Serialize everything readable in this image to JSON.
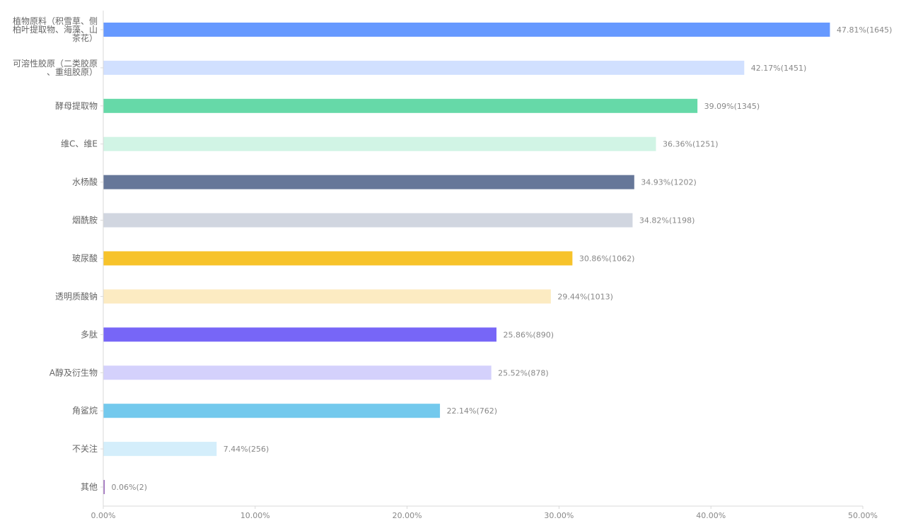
{
  "chart_data": {
    "type": "bar",
    "orientation": "horizontal",
    "title": "",
    "xlabel": "",
    "ylabel": "",
    "xlim": [
      0,
      50
    ],
    "x_ticks": [
      "0.00%",
      "10.00%",
      "20.00%",
      "30.00%",
      "40.00%",
      "50.00%"
    ],
    "grid": false,
    "categories": [
      "植物原料（积雪草、侧柏叶提取物、海藻、山茶花）",
      "可溶性胶原（二类胶原、重组胶原）",
      "酵母提取物",
      "维C、维E",
      "水杨酸",
      "烟酰胺",
      "玻尿酸",
      "透明质酸钠",
      "多肽",
      "A醇及衍生物",
      "角鲨烷",
      "不关注",
      "其他"
    ],
    "category_lines": [
      [
        "植物原料（积雪草、侧",
        "柏叶提取物、海藻、山",
        "茶花）"
      ],
      [
        "可溶性胶原（二类胶原",
        "、重组胶原）"
      ],
      [
        "酵母提取物"
      ],
      [
        "维C、维E"
      ],
      [
        "水杨酸"
      ],
      [
        "烟酰胺"
      ],
      [
        "玻尿酸"
      ],
      [
        "透明质酸钠"
      ],
      [
        "多肽"
      ],
      [
        "A醇及衍生物"
      ],
      [
        "角鲨烷"
      ],
      [
        "不关注"
      ],
      [
        "其他"
      ]
    ],
    "values": [
      47.81,
      42.17,
      39.09,
      36.36,
      34.93,
      34.82,
      30.86,
      29.44,
      25.86,
      25.52,
      22.14,
      7.44,
      0.06
    ],
    "counts": [
      1645,
      1451,
      1345,
      1251,
      1202,
      1198,
      1062,
      1013,
      890,
      878,
      762,
      256,
      2
    ],
    "value_labels": [
      "47.81%(1645)",
      "42.17%(1451)",
      "39.09%(1345)",
      "36.36%(1251)",
      "34.93%(1202)",
      "34.82%(1198)",
      "30.86%(1062)",
      "29.44%(1013)",
      "25.86%(890)",
      "25.52%(878)",
      "22.14%(762)",
      "7.44%(256)",
      "0.06%(2)"
    ],
    "colors": [
      "#6699ff",
      "#d1e0ff",
      "#66d9a8",
      "#d1f4e5",
      "#667799",
      "#d1d6e0",
      "#f7c32a",
      "#fcebc2",
      "#7766f7",
      "#d4d1fc",
      "#73c9ed",
      "#d4eefb",
      "#9966bb"
    ]
  }
}
